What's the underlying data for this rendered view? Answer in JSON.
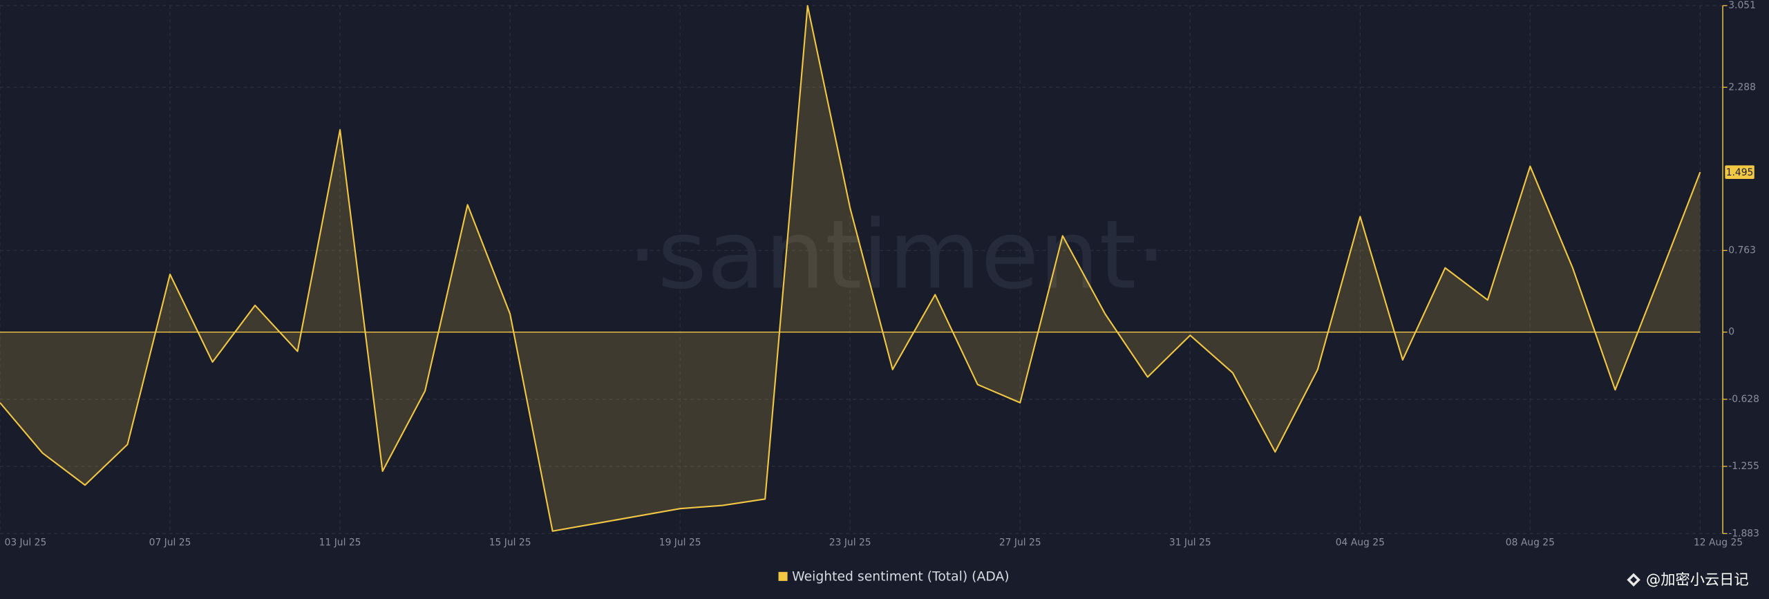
{
  "chart_data": {
    "type": "line",
    "watermark": "·santiment·",
    "categories": [
      "03 Jul 25",
      null,
      null,
      null,
      "07 Jul 25",
      null,
      null,
      null,
      "11 Jul 25",
      null,
      null,
      null,
      "15 Jul 25",
      null,
      null,
      null,
      "19 Jul 25",
      null,
      null,
      null,
      "23 Jul 25",
      null,
      null,
      null,
      "27 Jul 25",
      null,
      null,
      null,
      "31 Jul 25",
      null,
      null,
      null,
      "04 Aug 25",
      null,
      null,
      null,
      "08 Aug 25",
      null,
      null,
      null,
      "12 Aug 25"
    ],
    "series": [
      {
        "name": "Weighted sentiment (Total) (ADA)",
        "color": "#f2c744",
        "values": [
          -0.66,
          -1.13,
          -1.43,
          -1.05,
          0.54,
          -0.28,
          0.25,
          -0.18,
          1.89,
          -1.3,
          -0.55,
          1.19,
          0.17,
          -1.86,
          -1.79,
          -1.72,
          -1.65,
          -1.62,
          -1.56,
          3.05,
          1.16,
          -0.35,
          0.35,
          -0.49,
          -0.66,
          0.9,
          0.17,
          -0.42,
          -0.03,
          -0.38,
          -1.12,
          -0.35,
          1.08,
          -0.26,
          0.6,
          0.3,
          1.55,
          0.6,
          -0.54,
          0.47,
          1.495
        ]
      }
    ],
    "ylim": [
      -1.883,
      3.051
    ],
    "yticks": [
      3.051,
      2.288,
      0.763,
      0,
      -0.628,
      -1.255,
      -1.883
    ],
    "grid": true,
    "credit": "@加密小云日记"
  }
}
